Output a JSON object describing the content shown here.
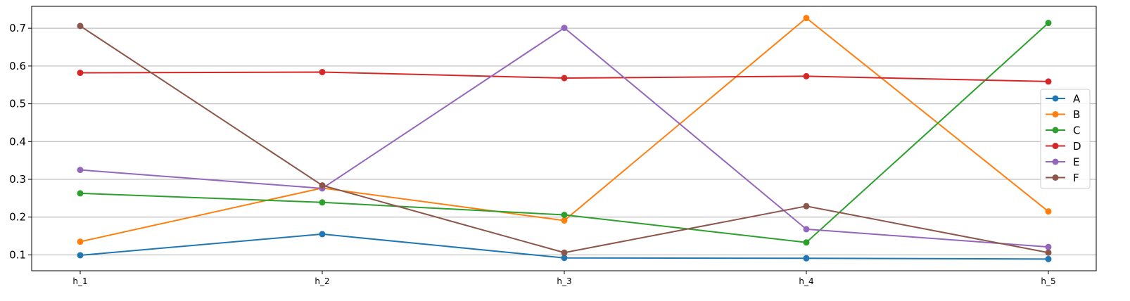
{
  "chart_data": {
    "type": "line",
    "categories": [
      "h_1",
      "h_2",
      "h_3",
      "h_4",
      "h_5"
    ],
    "ylim": [
      0.058,
      0.758
    ],
    "yticks": [
      0.1,
      0.2,
      0.3,
      0.4,
      0.5,
      0.6,
      0.7
    ],
    "ytick_labels": [
      "0.1",
      "0.2",
      "0.3",
      "0.4",
      "0.5",
      "0.6",
      "0.7"
    ],
    "grid": "horizontal",
    "legend_position": "right",
    "title": "",
    "xlabel": "",
    "ylabel": "",
    "series": [
      {
        "name": "A",
        "color": "#1f77b4",
        "values": [
          0.099,
          0.155,
          0.092,
          0.091,
          0.089
        ]
      },
      {
        "name": "B",
        "color": "#ff7f0e",
        "values": [
          0.135,
          0.277,
          0.191,
          0.727,
          0.215
        ]
      },
      {
        "name": "C",
        "color": "#2ca02c",
        "values": [
          0.263,
          0.239,
          0.206,
          0.133,
          0.714
        ]
      },
      {
        "name": "D",
        "color": "#d62728",
        "values": [
          0.582,
          0.584,
          0.568,
          0.573,
          0.559
        ]
      },
      {
        "name": "E",
        "color": "#9467bd",
        "values": [
          0.325,
          0.276,
          0.701,
          0.168,
          0.121
        ]
      },
      {
        "name": "F",
        "color": "#8c564b",
        "values": [
          0.706,
          0.284,
          0.106,
          0.229,
          0.106
        ]
      }
    ]
  }
}
